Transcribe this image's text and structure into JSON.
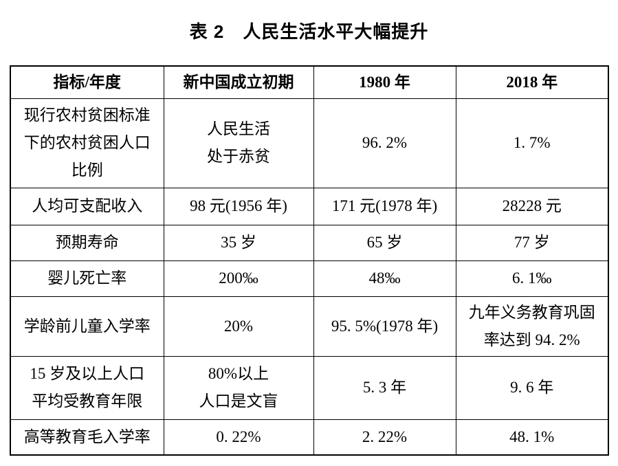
{
  "page": {
    "title": "表 2　人民生活水平大幅提升"
  },
  "table": {
    "columns": [
      "指标/年度",
      "新中国成立初期",
      "1980 年",
      "2018 年"
    ],
    "rows": [
      {
        "cells": [
          "现行农村贫困标准\n下的农村贫困人口\n比例",
          "人民生活\n处于赤贫",
          "96. 2%",
          "1. 7%"
        ]
      },
      {
        "cells": [
          "人均可支配收入",
          "98 元(1956 年)",
          "171 元(1978 年)",
          "28228 元"
        ]
      },
      {
        "cells": [
          "预期寿命",
          "35 岁",
          "65 岁",
          "77 岁"
        ]
      },
      {
        "cells": [
          "婴儿死亡率",
          "200‰",
          "48‰",
          "6. 1‰"
        ]
      },
      {
        "cells": [
          "学龄前儿童入学率",
          "20%",
          "95. 5%(1978 年)",
          "九年义务教育巩固\n率达到 94. 2%"
        ]
      },
      {
        "cells": [
          "15 岁及以上人口\n平均受教育年限",
          "80%以上\n人口是文盲",
          "5. 3 年",
          "9. 6 年"
        ]
      },
      {
        "cells": [
          "高等教育毛入学率",
          "0. 22%",
          "2. 22%",
          "48. 1%"
        ]
      }
    ]
  },
  "chart_data": {
    "type": "table",
    "title": "表 2　人民生活水平大幅提升",
    "columns": [
      "指标/年度",
      "新中国成立初期",
      "1980 年",
      "2018 年"
    ],
    "rows": [
      [
        "现行农村贫困标准下的农村贫困人口比例",
        "人民生活处于赤贫",
        "96.2%",
        "1.7%"
      ],
      [
        "人均可支配收入",
        "98 元(1956 年)",
        "171 元(1978 年)",
        "28228 元"
      ],
      [
        "预期寿命",
        "35 岁",
        "65 岁",
        "77 岁"
      ],
      [
        "婴儿死亡率",
        "200‰",
        "48‰",
        "6.1‰"
      ],
      [
        "学龄前儿童入学率",
        "20%",
        "95.5%(1978 年)",
        "九年义务教育巩固率达到 94.2%"
      ],
      [
        "15 岁及以上人口平均受教育年限",
        "80%以上人口是文盲",
        "5.3 年",
        "9.6 年"
      ],
      [
        "高等教育毛入学率",
        "0.22%",
        "2.22%",
        "48.1%"
      ]
    ]
  },
  "colors": {
    "text": "#000000",
    "border": "#000000",
    "background": "#ffffff"
  }
}
